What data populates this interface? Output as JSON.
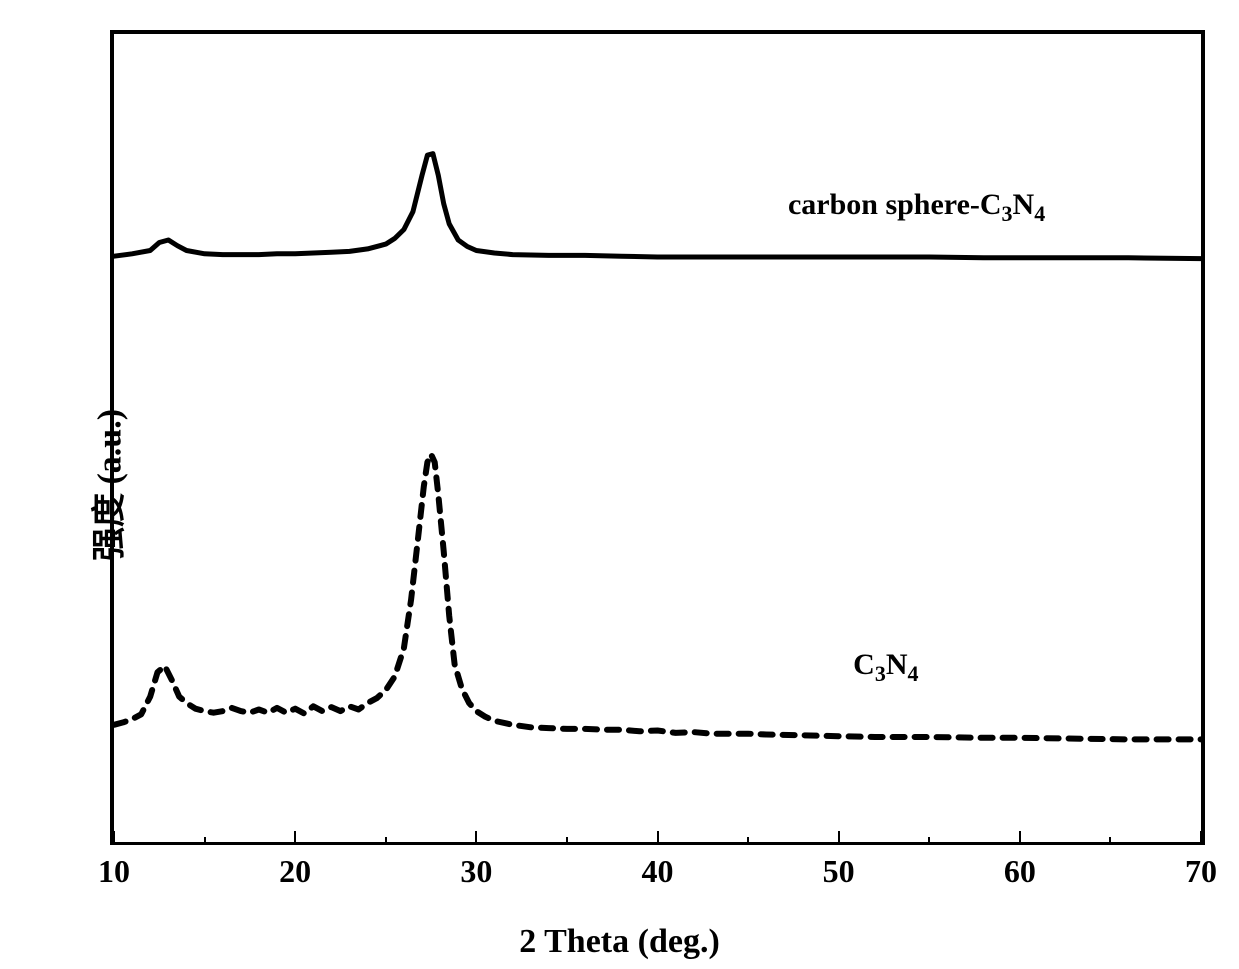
{
  "chart": {
    "type": "line",
    "background_color": "#ffffff",
    "axis_color": "#000000",
    "axis_line_width": 4,
    "x_axis": {
      "label": "2 Theta (deg.)",
      "min": 10,
      "max": 70,
      "major_ticks": [
        10,
        20,
        30,
        40,
        50,
        60,
        70
      ],
      "minor_tick_step": 5,
      "label_fontsize": 34,
      "tick_fontsize": 32
    },
    "y_axis": {
      "label": "强度 (a.u.)",
      "label_fontsize": 34,
      "show_ticks": false
    },
    "series": [
      {
        "name": "carbon sphere-C3N4",
        "label_html": "carbon sphere-C<sub>3</sub>N<sub>4</sub>",
        "label_x_frac": 0.62,
        "label_y_frac": 0.19,
        "color": "#000000",
        "line_width": 5,
        "line_style": "solid",
        "baseline_y_frac": 0.275,
        "data": [
          {
            "x": 10,
            "y": 0.275
          },
          {
            "x": 11,
            "y": 0.272
          },
          {
            "x": 12,
            "y": 0.268
          },
          {
            "x": 12.5,
            "y": 0.258
          },
          {
            "x": 13,
            "y": 0.255
          },
          {
            "x": 13.5,
            "y": 0.262
          },
          {
            "x": 14,
            "y": 0.268
          },
          {
            "x": 15,
            "y": 0.272
          },
          {
            "x": 16,
            "y": 0.273
          },
          {
            "x": 17,
            "y": 0.273
          },
          {
            "x": 18,
            "y": 0.273
          },
          {
            "x": 19,
            "y": 0.272
          },
          {
            "x": 20,
            "y": 0.272
          },
          {
            "x": 21,
            "y": 0.271
          },
          {
            "x": 22,
            "y": 0.27
          },
          {
            "x": 23,
            "y": 0.269
          },
          {
            "x": 24,
            "y": 0.266
          },
          {
            "x": 25,
            "y": 0.26
          },
          {
            "x": 25.5,
            "y": 0.253
          },
          {
            "x": 26,
            "y": 0.242
          },
          {
            "x": 26.5,
            "y": 0.22
          },
          {
            "x": 27,
            "y": 0.175
          },
          {
            "x": 27.3,
            "y": 0.15
          },
          {
            "x": 27.6,
            "y": 0.148
          },
          {
            "x": 27.9,
            "y": 0.175
          },
          {
            "x": 28.2,
            "y": 0.21
          },
          {
            "x": 28.5,
            "y": 0.235
          },
          {
            "x": 29,
            "y": 0.255
          },
          {
            "x": 29.5,
            "y": 0.263
          },
          {
            "x": 30,
            "y": 0.268
          },
          {
            "x": 31,
            "y": 0.271
          },
          {
            "x": 32,
            "y": 0.273
          },
          {
            "x": 34,
            "y": 0.274
          },
          {
            "x": 36,
            "y": 0.274
          },
          {
            "x": 38,
            "y": 0.275
          },
          {
            "x": 40,
            "y": 0.276
          },
          {
            "x": 42,
            "y": 0.276
          },
          {
            "x": 44,
            "y": 0.276
          },
          {
            "x": 46,
            "y": 0.276
          },
          {
            "x": 48,
            "y": 0.276
          },
          {
            "x": 50,
            "y": 0.276
          },
          {
            "x": 52,
            "y": 0.276
          },
          {
            "x": 55,
            "y": 0.276
          },
          {
            "x": 58,
            "y": 0.277
          },
          {
            "x": 60,
            "y": 0.277
          },
          {
            "x": 63,
            "y": 0.277
          },
          {
            "x": 66,
            "y": 0.277
          },
          {
            "x": 70,
            "y": 0.278
          }
        ]
      },
      {
        "name": "C3N4",
        "label_html": "C<sub>3</sub>N<sub>4</sub>",
        "label_x_frac": 0.68,
        "label_y_frac": 0.76,
        "color": "#000000",
        "line_width": 6,
        "line_style": "dashed",
        "dash_pattern": "12 10",
        "baseline_y_frac": 0.85,
        "data": [
          {
            "x": 10,
            "y": 0.855
          },
          {
            "x": 10.5,
            "y": 0.852
          },
          {
            "x": 11,
            "y": 0.848
          },
          {
            "x": 11.5,
            "y": 0.842
          },
          {
            "x": 12,
            "y": 0.82
          },
          {
            "x": 12.4,
            "y": 0.79
          },
          {
            "x": 12.8,
            "y": 0.782
          },
          {
            "x": 13.2,
            "y": 0.8
          },
          {
            "x": 13.6,
            "y": 0.82
          },
          {
            "x": 14,
            "y": 0.828
          },
          {
            "x": 14.5,
            "y": 0.835
          },
          {
            "x": 15,
            "y": 0.838
          },
          {
            "x": 15.5,
            "y": 0.84
          },
          {
            "x": 16,
            "y": 0.838
          },
          {
            "x": 16.5,
            "y": 0.834
          },
          {
            "x": 17,
            "y": 0.838
          },
          {
            "x": 17.5,
            "y": 0.84
          },
          {
            "x": 18,
            "y": 0.836
          },
          {
            "x": 18.5,
            "y": 0.84
          },
          {
            "x": 19,
            "y": 0.834
          },
          {
            "x": 19.5,
            "y": 0.84
          },
          {
            "x": 20,
            "y": 0.835
          },
          {
            "x": 20.5,
            "y": 0.841
          },
          {
            "x": 21,
            "y": 0.832
          },
          {
            "x": 21.5,
            "y": 0.838
          },
          {
            "x": 22,
            "y": 0.833
          },
          {
            "x": 22.5,
            "y": 0.838
          },
          {
            "x": 23,
            "y": 0.832
          },
          {
            "x": 23.5,
            "y": 0.836
          },
          {
            "x": 24,
            "y": 0.828
          },
          {
            "x": 24.5,
            "y": 0.822
          },
          {
            "x": 25,
            "y": 0.812
          },
          {
            "x": 25.5,
            "y": 0.795
          },
          {
            "x": 26,
            "y": 0.76
          },
          {
            "x": 26.4,
            "y": 0.7
          },
          {
            "x": 26.8,
            "y": 0.62
          },
          {
            "x": 27.1,
            "y": 0.56
          },
          {
            "x": 27.3,
            "y": 0.53
          },
          {
            "x": 27.5,
            "y": 0.52
          },
          {
            "x": 27.7,
            "y": 0.53
          },
          {
            "x": 27.9,
            "y": 0.57
          },
          {
            "x": 28.2,
            "y": 0.64
          },
          {
            "x": 28.5,
            "y": 0.72
          },
          {
            "x": 28.8,
            "y": 0.78
          },
          {
            "x": 29.2,
            "y": 0.81
          },
          {
            "x": 29.6,
            "y": 0.828
          },
          {
            "x": 30,
            "y": 0.838
          },
          {
            "x": 30.5,
            "y": 0.845
          },
          {
            "x": 31,
            "y": 0.85
          },
          {
            "x": 32,
            "y": 0.855
          },
          {
            "x": 33,
            "y": 0.858
          },
          {
            "x": 34,
            "y": 0.859
          },
          {
            "x": 35,
            "y": 0.86
          },
          {
            "x": 36,
            "y": 0.86
          },
          {
            "x": 37,
            "y": 0.861
          },
          {
            "x": 38,
            "y": 0.861
          },
          {
            "x": 39,
            "y": 0.863
          },
          {
            "x": 40,
            "y": 0.862
          },
          {
            "x": 41,
            "y": 0.865
          },
          {
            "x": 42,
            "y": 0.864
          },
          {
            "x": 43,
            "y": 0.866
          },
          {
            "x": 44,
            "y": 0.866
          },
          {
            "x": 45,
            "y": 0.866
          },
          {
            "x": 46,
            "y": 0.867
          },
          {
            "x": 48,
            "y": 0.868
          },
          {
            "x": 50,
            "y": 0.869
          },
          {
            "x": 52,
            "y": 0.87
          },
          {
            "x": 55,
            "y": 0.87
          },
          {
            "x": 58,
            "y": 0.871
          },
          {
            "x": 60,
            "y": 0.871
          },
          {
            "x": 63,
            "y": 0.872
          },
          {
            "x": 66,
            "y": 0.873
          },
          {
            "x": 70,
            "y": 0.873
          }
        ]
      }
    ]
  }
}
